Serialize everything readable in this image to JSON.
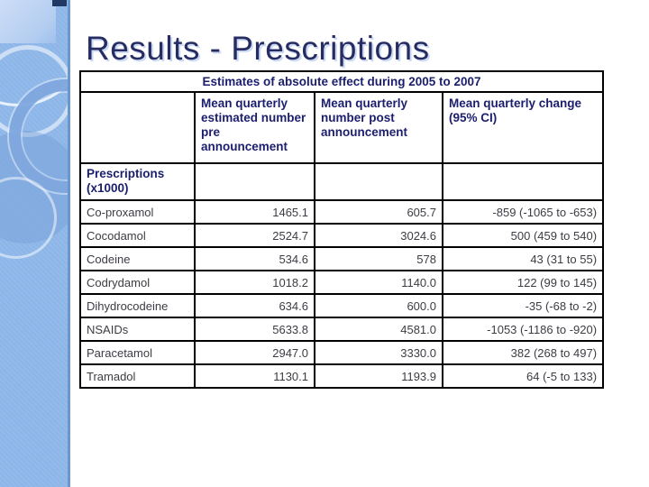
{
  "title": "Results - Prescriptions",
  "table": {
    "caption": "Estimates of absolute effect during 2005 to 2007",
    "col_headers": [
      "Mean quarterly estimated number pre announcement",
      "Mean quarterly number post announcement",
      "Mean quarterly change (95% CI)"
    ],
    "group_label": "Prescriptions (x1000)",
    "rows": [
      {
        "name": "Co-proxamol",
        "pre": "1465.1",
        "post": "605.7",
        "change": "-859 (-1065 to -653)"
      },
      {
        "name": "Cocodamol",
        "pre": "2524.7",
        "post": "3024.6",
        "change": "500 (459 to 540)"
      },
      {
        "name": "Codeine",
        "pre": "534.6",
        "post": "578",
        "change": "43 (31 to 55)"
      },
      {
        "name": "Codrydamol",
        "pre": "1018.2",
        "post": "1140.0",
        "change": "122 (99 to 145)"
      },
      {
        "name": "Dihydrocodeine",
        "pre": "634.6",
        "post": "600.0",
        "change": "-35 (-68 to -2)"
      },
      {
        "name": "NSAIDs",
        "pre": "5633.8",
        "post": "4581.0",
        "change": "-1053 (-1186 to -920)"
      },
      {
        "name": "Paracetamol",
        "pre": "2947.0",
        "post": "3330.0",
        "change": "382 (268 to 497)"
      },
      {
        "name": "Tramadol",
        "pre": "1130.1",
        "post": "1193.9",
        "change": "64 (-5 to 133)"
      }
    ]
  },
  "colors": {
    "title_text": "#272d63",
    "header_text": "#1b1e6e",
    "body_text": "#3c3c44",
    "table_border": "#000000",
    "sidebar_blue": "#8db6e8",
    "sidebar_light": "#bcd3f2",
    "accent_navy": "#1f3864"
  }
}
